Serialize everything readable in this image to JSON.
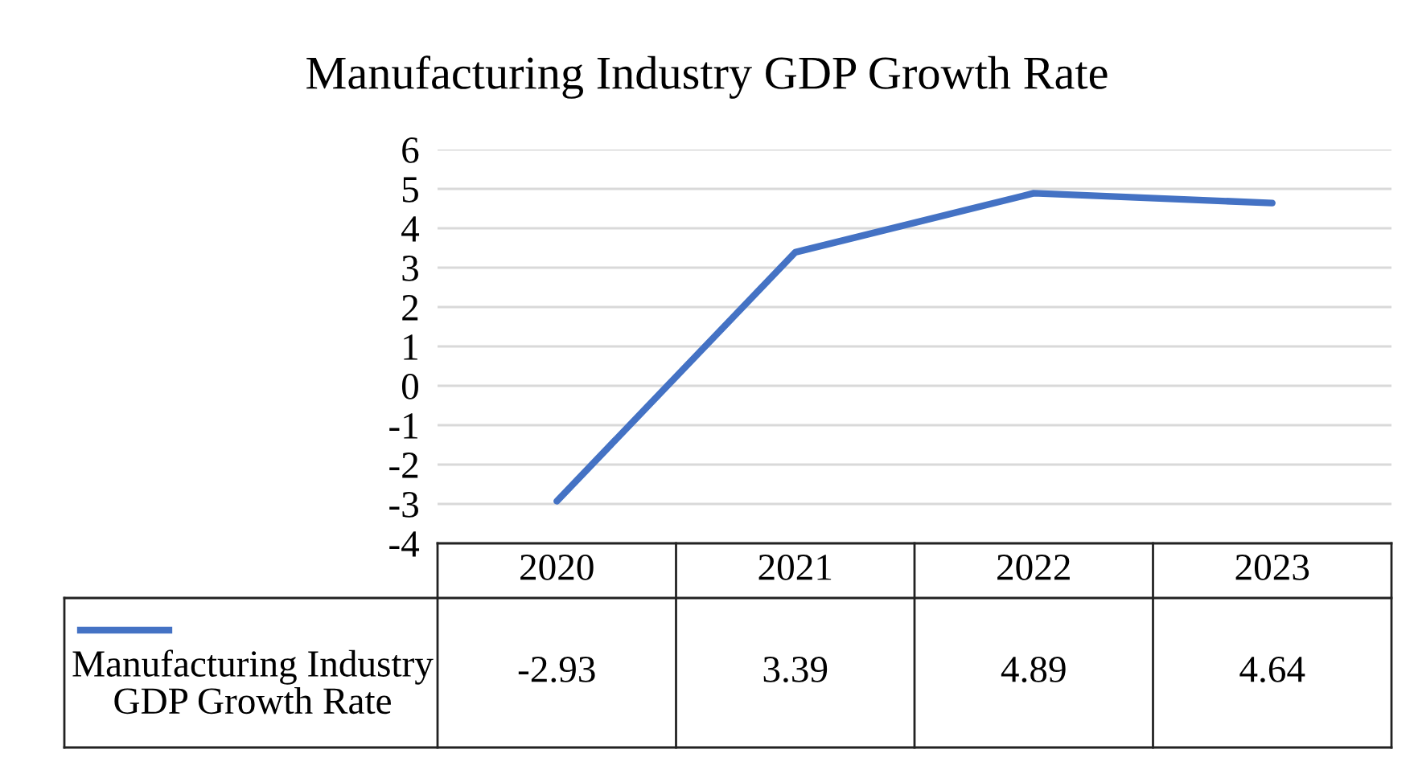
{
  "chart_data": {
    "type": "line",
    "title": "Manufacturing Industry GDP Growth Rate",
    "categories": [
      "2020",
      "2021",
      "2022",
      "2023"
    ],
    "series": [
      {
        "name": "Manufacturing Industry GDP Growth Rate",
        "color": "#4472c4",
        "values": [
          -2.93,
          3.39,
          4.89,
          4.64
        ]
      }
    ],
    "ylim": [
      -4,
      6
    ],
    "yticks": [
      -4,
      -3,
      -2,
      -1,
      0,
      1,
      2,
      3,
      4,
      5,
      6
    ],
    "grid": "y",
    "legend": "bottom",
    "data_labels": true,
    "marker": "none",
    "line_style": "solid"
  }
}
